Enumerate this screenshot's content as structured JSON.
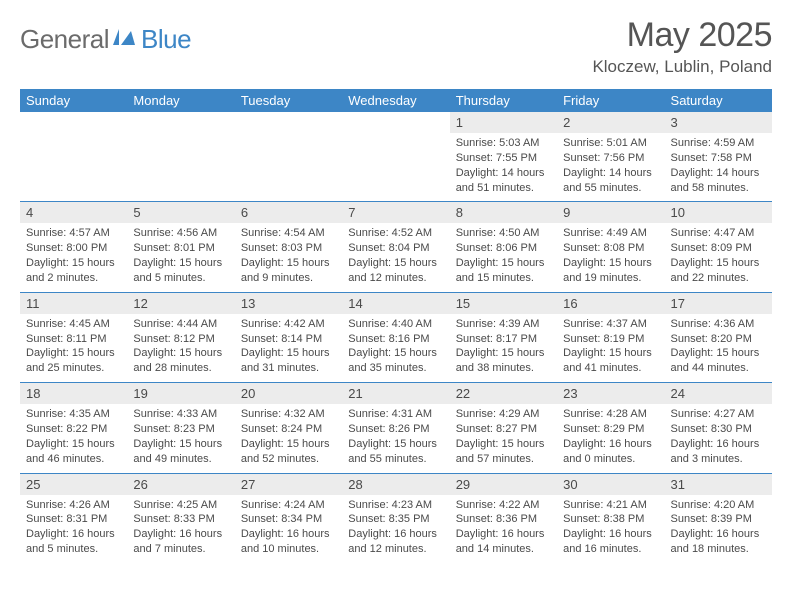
{
  "brand": {
    "part1": "General",
    "part2": "Blue"
  },
  "title": "May 2025",
  "location": "Kloczew, Lublin, Poland",
  "colors": {
    "header_bg": "#3d86c6",
    "header_fg": "#ffffff",
    "daynum_bg": "#ececec",
    "text": "#4a4a4a",
    "title": "#555555",
    "logo_gray": "#6b6b6b",
    "logo_blue": "#3d86c6"
  },
  "dow": [
    "Sunday",
    "Monday",
    "Tuesday",
    "Wednesday",
    "Thursday",
    "Friday",
    "Saturday"
  ],
  "weeks": [
    {
      "nums": [
        "",
        "",
        "",
        "",
        "1",
        "2",
        "3"
      ],
      "details": [
        "",
        "",
        "",
        "",
        "Sunrise: 5:03 AM\nSunset: 7:55 PM\nDaylight: 14 hours and 51 minutes.",
        "Sunrise: 5:01 AM\nSunset: 7:56 PM\nDaylight: 14 hours and 55 minutes.",
        "Sunrise: 4:59 AM\nSunset: 7:58 PM\nDaylight: 14 hours and 58 minutes."
      ]
    },
    {
      "nums": [
        "4",
        "5",
        "6",
        "7",
        "8",
        "9",
        "10"
      ],
      "details": [
        "Sunrise: 4:57 AM\nSunset: 8:00 PM\nDaylight: 15 hours and 2 minutes.",
        "Sunrise: 4:56 AM\nSunset: 8:01 PM\nDaylight: 15 hours and 5 minutes.",
        "Sunrise: 4:54 AM\nSunset: 8:03 PM\nDaylight: 15 hours and 9 minutes.",
        "Sunrise: 4:52 AM\nSunset: 8:04 PM\nDaylight: 15 hours and 12 minutes.",
        "Sunrise: 4:50 AM\nSunset: 8:06 PM\nDaylight: 15 hours and 15 minutes.",
        "Sunrise: 4:49 AM\nSunset: 8:08 PM\nDaylight: 15 hours and 19 minutes.",
        "Sunrise: 4:47 AM\nSunset: 8:09 PM\nDaylight: 15 hours and 22 minutes."
      ]
    },
    {
      "nums": [
        "11",
        "12",
        "13",
        "14",
        "15",
        "16",
        "17"
      ],
      "details": [
        "Sunrise: 4:45 AM\nSunset: 8:11 PM\nDaylight: 15 hours and 25 minutes.",
        "Sunrise: 4:44 AM\nSunset: 8:12 PM\nDaylight: 15 hours and 28 minutes.",
        "Sunrise: 4:42 AM\nSunset: 8:14 PM\nDaylight: 15 hours and 31 minutes.",
        "Sunrise: 4:40 AM\nSunset: 8:16 PM\nDaylight: 15 hours and 35 minutes.",
        "Sunrise: 4:39 AM\nSunset: 8:17 PM\nDaylight: 15 hours and 38 minutes.",
        "Sunrise: 4:37 AM\nSunset: 8:19 PM\nDaylight: 15 hours and 41 minutes.",
        "Sunrise: 4:36 AM\nSunset: 8:20 PM\nDaylight: 15 hours and 44 minutes."
      ]
    },
    {
      "nums": [
        "18",
        "19",
        "20",
        "21",
        "22",
        "23",
        "24"
      ],
      "details": [
        "Sunrise: 4:35 AM\nSunset: 8:22 PM\nDaylight: 15 hours and 46 minutes.",
        "Sunrise: 4:33 AM\nSunset: 8:23 PM\nDaylight: 15 hours and 49 minutes.",
        "Sunrise: 4:32 AM\nSunset: 8:24 PM\nDaylight: 15 hours and 52 minutes.",
        "Sunrise: 4:31 AM\nSunset: 8:26 PM\nDaylight: 15 hours and 55 minutes.",
        "Sunrise: 4:29 AM\nSunset: 8:27 PM\nDaylight: 15 hours and 57 minutes.",
        "Sunrise: 4:28 AM\nSunset: 8:29 PM\nDaylight: 16 hours and 0 minutes.",
        "Sunrise: 4:27 AM\nSunset: 8:30 PM\nDaylight: 16 hours and 3 minutes."
      ]
    },
    {
      "nums": [
        "25",
        "26",
        "27",
        "28",
        "29",
        "30",
        "31"
      ],
      "details": [
        "Sunrise: 4:26 AM\nSunset: 8:31 PM\nDaylight: 16 hours and 5 minutes.",
        "Sunrise: 4:25 AM\nSunset: 8:33 PM\nDaylight: 16 hours and 7 minutes.",
        "Sunrise: 4:24 AM\nSunset: 8:34 PM\nDaylight: 16 hours and 10 minutes.",
        "Sunrise: 4:23 AM\nSunset: 8:35 PM\nDaylight: 16 hours and 12 minutes.",
        "Sunrise: 4:22 AM\nSunset: 8:36 PM\nDaylight: 16 hours and 14 minutes.",
        "Sunrise: 4:21 AM\nSunset: 8:38 PM\nDaylight: 16 hours and 16 minutes.",
        "Sunrise: 4:20 AM\nSunset: 8:39 PM\nDaylight: 16 hours and 18 minutes."
      ]
    }
  ]
}
